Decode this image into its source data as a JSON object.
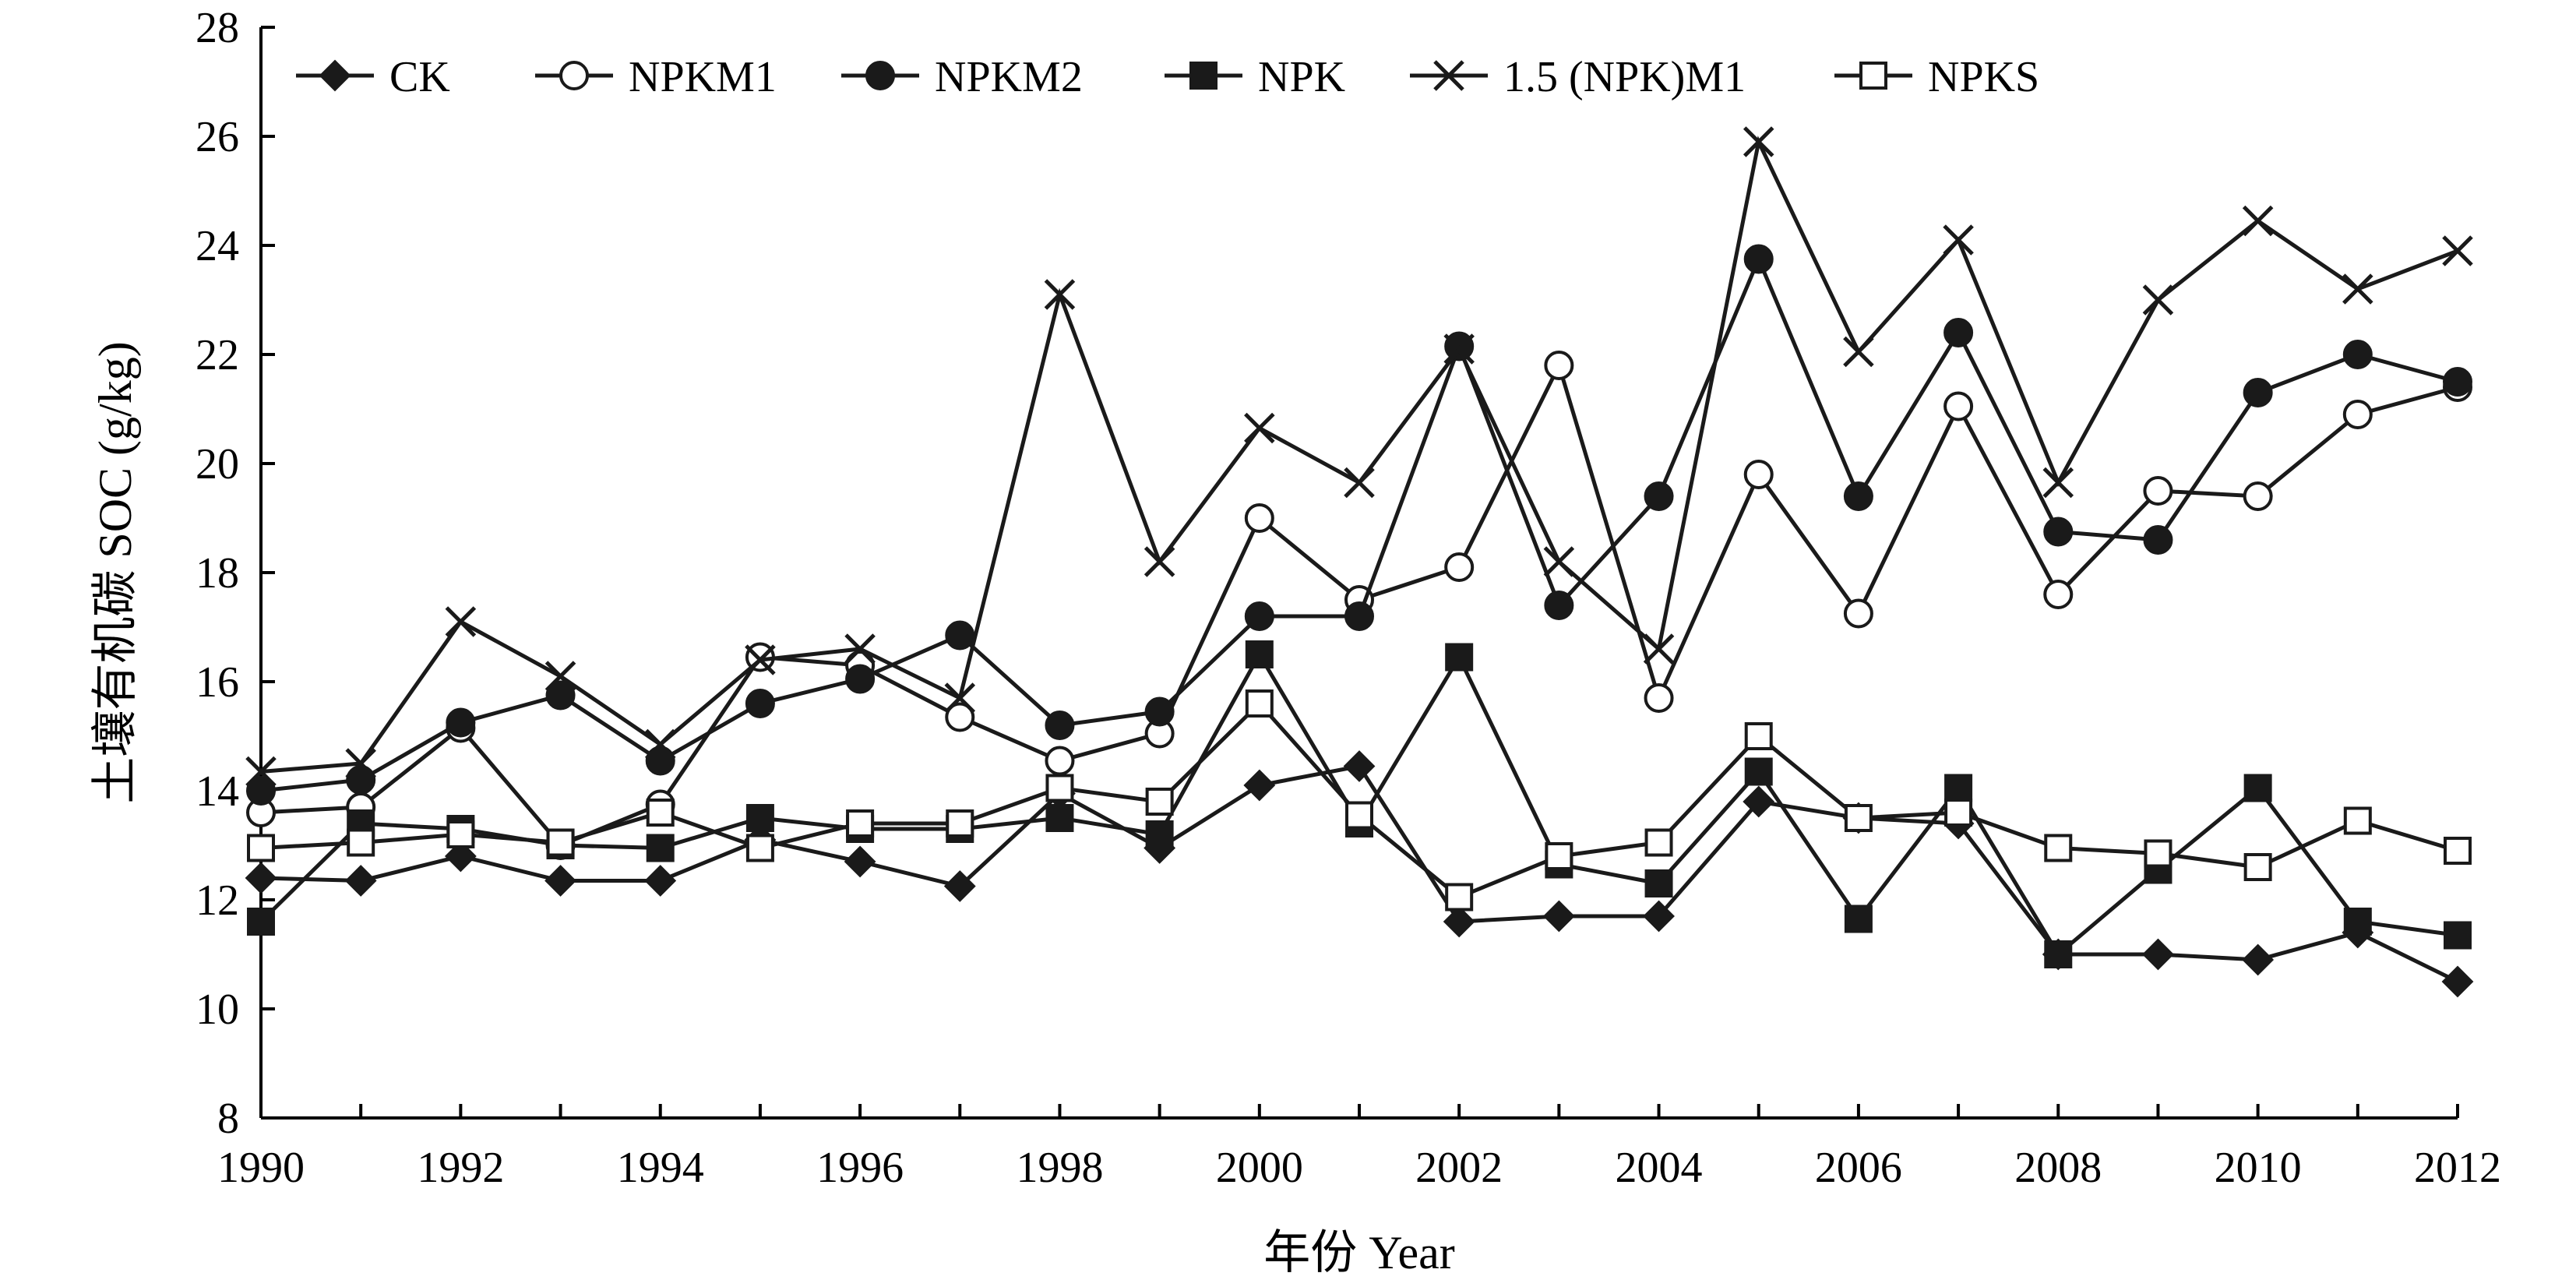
{
  "chart_data": {
    "type": "line",
    "title": "",
    "xlabel": "年份 Year",
    "ylabel": "土壤有机碳 SOC (g/kg)",
    "xlim": [
      1990,
      2012
    ],
    "ylim": [
      8,
      28
    ],
    "xticks": [
      "1990",
      "1992",
      "1994",
      "1996",
      "1998",
      "2000",
      "2002",
      "2004",
      "2006",
      "2008",
      "2010",
      "2012"
    ],
    "yticks": [
      "8",
      "10",
      "12",
      "14",
      "16",
      "18",
      "20",
      "22",
      "24",
      "26",
      "28"
    ],
    "grid": false,
    "legend_position": "top",
    "x": [
      1990,
      1991,
      1992,
      1993,
      1994,
      1995,
      1996,
      1997,
      1998,
      1999,
      2000,
      2001,
      2002,
      2003,
      2004,
      2005,
      2006,
      2007,
      2008,
      2009,
      2010,
      2011,
      2012
    ],
    "series": [
      {
        "name": "CK",
        "marker": "diamond",
        "values": [
          12.4,
          12.35,
          12.8,
          12.35,
          12.35,
          13.1,
          12.7,
          12.25,
          13.95,
          12.95,
          14.1,
          14.45,
          11.6,
          11.7,
          11.7,
          13.8,
          13.5,
          13.4,
          11.0,
          11.0,
          10.9,
          11.4,
          10.5
        ]
      },
      {
        "name": "NPKM1",
        "marker": "open-circle",
        "values": [
          13.6,
          13.7,
          15.15,
          13.0,
          13.75,
          16.45,
          16.3,
          15.35,
          14.55,
          15.05,
          19.0,
          17.5,
          18.1,
          21.8,
          15.7,
          19.8,
          17.25,
          21.05,
          17.6,
          19.5,
          19.4,
          20.9,
          21.4
        ]
      },
      {
        "name": "NPKM2",
        "marker": "filled-circle",
        "values": [
          14.0,
          14.2,
          15.25,
          15.75,
          14.55,
          15.6,
          16.05,
          16.85,
          15.2,
          15.45,
          17.2,
          17.2,
          22.15,
          17.4,
          19.4,
          23.75,
          19.4,
          22.4,
          18.75,
          18.6,
          21.3,
          22.0,
          21.5
        ]
      },
      {
        "name": "NPK",
        "marker": "filled-square",
        "values": [
          11.6,
          13.4,
          13.3,
          13.0,
          12.95,
          13.5,
          13.3,
          13.3,
          13.5,
          13.2,
          16.5,
          13.4,
          16.45,
          12.65,
          12.3,
          14.35,
          11.65,
          14.05,
          11.0,
          12.55,
          14.05,
          11.6,
          11.35
        ]
      },
      {
        "name": "1.5 (NPK)M1",
        "marker": "x",
        "values": [
          14.35,
          14.5,
          17.1,
          16.1,
          14.85,
          16.4,
          16.6,
          15.7,
          23.1,
          18.2,
          20.65,
          19.65,
          22.1,
          18.2,
          16.6,
          25.9,
          22.05,
          24.1,
          19.65,
          23.0,
          24.45,
          23.2,
          23.9
        ]
      },
      {
        "name": "NPKS",
        "marker": "open-square",
        "values": [
          12.95,
          13.05,
          13.2,
          13.05,
          13.6,
          12.95,
          13.4,
          13.4,
          14.05,
          13.8,
          15.6,
          13.55,
          12.05,
          12.8,
          13.05,
          15.0,
          13.5,
          13.6,
          12.95,
          12.85,
          12.6,
          13.45,
          12.9
        ]
      }
    ]
  }
}
